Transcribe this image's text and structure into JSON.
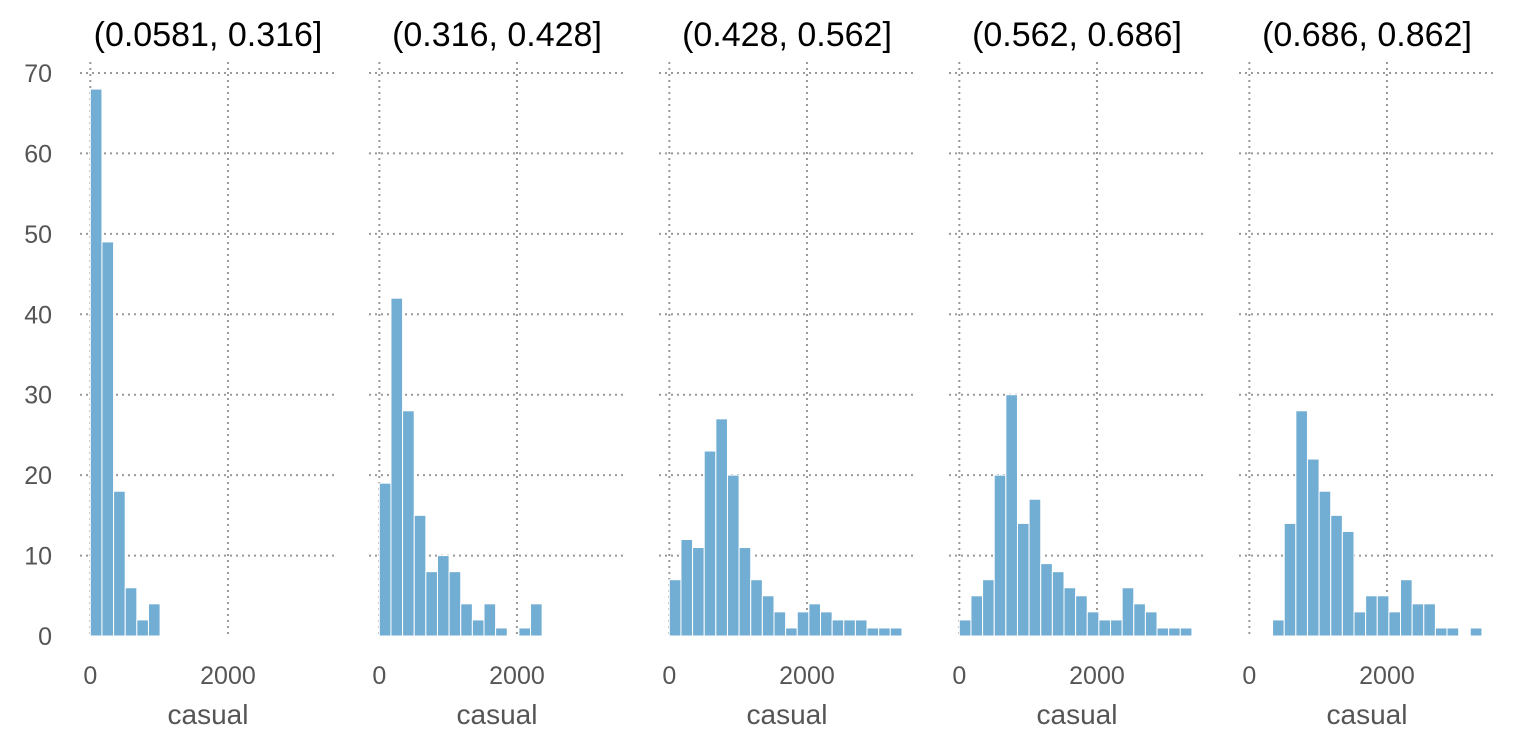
{
  "chart_data": {
    "type": "bar",
    "style": {
      "bar_color": "#72aed3",
      "grid": true,
      "grid_style": "dotted",
      "grid_color": "#999999"
    },
    "shared_y_axis": {
      "ticks": [
        0,
        10,
        20,
        30,
        40,
        50,
        60,
        70
      ],
      "ylim": [
        0,
        70
      ]
    },
    "panels": [
      {
        "title": "(0.0581, 0.316]",
        "xlabel": "casual",
        "xlim": [
          -150,
          3570
        ],
        "xticks": [
          0,
          2000
        ],
        "bars": [
          {
            "x0": 0,
            "x1": 169,
            "count": 68
          },
          {
            "x0": 169,
            "x1": 338,
            "count": 49
          },
          {
            "x0": 338,
            "x1": 507,
            "count": 18
          },
          {
            "x0": 507,
            "x1": 676,
            "count": 6
          },
          {
            "x0": 676,
            "x1": 845,
            "count": 2
          },
          {
            "x0": 845,
            "x1": 1014,
            "count": 4
          }
        ]
      },
      {
        "title": "(0.316, 0.428]",
        "xlabel": "casual",
        "xlim": [
          -150,
          3570
        ],
        "xticks": [
          0,
          2000
        ],
        "bars": [
          {
            "x0": 0,
            "x1": 169,
            "count": 19
          },
          {
            "x0": 169,
            "x1": 338,
            "count": 42
          },
          {
            "x0": 338,
            "x1": 507,
            "count": 28
          },
          {
            "x0": 507,
            "x1": 676,
            "count": 15
          },
          {
            "x0": 676,
            "x1": 845,
            "count": 8
          },
          {
            "x0": 845,
            "x1": 1014,
            "count": 10
          },
          {
            "x0": 1014,
            "x1": 1183,
            "count": 8
          },
          {
            "x0": 1183,
            "x1": 1352,
            "count": 4
          },
          {
            "x0": 1352,
            "x1": 1521,
            "count": 2
          },
          {
            "x0": 1521,
            "x1": 1690,
            "count": 4
          },
          {
            "x0": 1690,
            "x1": 1859,
            "count": 1
          },
          {
            "x0": 2028,
            "x1": 2197,
            "count": 1
          },
          {
            "x0": 2197,
            "x1": 2366,
            "count": 4
          }
        ]
      },
      {
        "title": "(0.428, 0.562]",
        "xlabel": "casual",
        "xlim": [
          -150,
          3570
        ],
        "xticks": [
          0,
          2000
        ],
        "bars": [
          {
            "x0": 0,
            "x1": 169,
            "count": 7
          },
          {
            "x0": 169,
            "x1": 338,
            "count": 12
          },
          {
            "x0": 338,
            "x1": 507,
            "count": 11
          },
          {
            "x0": 507,
            "x1": 676,
            "count": 23
          },
          {
            "x0": 676,
            "x1": 845,
            "count": 27
          },
          {
            "x0": 845,
            "x1": 1014,
            "count": 20
          },
          {
            "x0": 1014,
            "x1": 1183,
            "count": 11
          },
          {
            "x0": 1183,
            "x1": 1352,
            "count": 7
          },
          {
            "x0": 1352,
            "x1": 1521,
            "count": 5
          },
          {
            "x0": 1521,
            "x1": 1690,
            "count": 3
          },
          {
            "x0": 1690,
            "x1": 1859,
            "count": 1
          },
          {
            "x0": 1859,
            "x1": 2028,
            "count": 3
          },
          {
            "x0": 2028,
            "x1": 2197,
            "count": 4
          },
          {
            "x0": 2197,
            "x1": 2366,
            "count": 3
          },
          {
            "x0": 2366,
            "x1": 2535,
            "count": 2
          },
          {
            "x0": 2535,
            "x1": 2704,
            "count": 2
          },
          {
            "x0": 2704,
            "x1": 2873,
            "count": 2
          },
          {
            "x0": 2873,
            "x1": 3042,
            "count": 1
          },
          {
            "x0": 3042,
            "x1": 3211,
            "count": 1
          },
          {
            "x0": 3211,
            "x1": 3380,
            "count": 1
          }
        ]
      },
      {
        "title": "(0.562, 0.686]",
        "xlabel": "casual",
        "xlim": [
          -150,
          3570
        ],
        "xticks": [
          0,
          2000
        ],
        "bars": [
          {
            "x0": 0,
            "x1": 169,
            "count": 2
          },
          {
            "x0": 169,
            "x1": 338,
            "count": 5
          },
          {
            "x0": 338,
            "x1": 507,
            "count": 7
          },
          {
            "x0": 507,
            "x1": 676,
            "count": 20
          },
          {
            "x0": 676,
            "x1": 845,
            "count": 30
          },
          {
            "x0": 845,
            "x1": 1014,
            "count": 14
          },
          {
            "x0": 1014,
            "x1": 1183,
            "count": 17
          },
          {
            "x0": 1183,
            "x1": 1352,
            "count": 9
          },
          {
            "x0": 1352,
            "x1": 1521,
            "count": 8
          },
          {
            "x0": 1521,
            "x1": 1690,
            "count": 6
          },
          {
            "x0": 1690,
            "x1": 1859,
            "count": 5
          },
          {
            "x0": 1859,
            "x1": 2028,
            "count": 3
          },
          {
            "x0": 2028,
            "x1": 2197,
            "count": 2
          },
          {
            "x0": 2197,
            "x1": 2366,
            "count": 2
          },
          {
            "x0": 2366,
            "x1": 2535,
            "count": 6
          },
          {
            "x0": 2535,
            "x1": 2704,
            "count": 4
          },
          {
            "x0": 2704,
            "x1": 2873,
            "count": 3
          },
          {
            "x0": 2873,
            "x1": 3042,
            "count": 1
          },
          {
            "x0": 3042,
            "x1": 3211,
            "count": 1
          },
          {
            "x0": 3211,
            "x1": 3380,
            "count": 1
          }
        ]
      },
      {
        "title": "(0.686, 0.862]",
        "xlabel": "casual",
        "xlim": [
          -150,
          3570
        ],
        "xticks": [
          0,
          2000
        ],
        "bars": [
          {
            "x0": 338,
            "x1": 507,
            "count": 2
          },
          {
            "x0": 507,
            "x1": 676,
            "count": 14
          },
          {
            "x0": 676,
            "x1": 845,
            "count": 28
          },
          {
            "x0": 845,
            "x1": 1014,
            "count": 22
          },
          {
            "x0": 1014,
            "x1": 1183,
            "count": 18
          },
          {
            "x0": 1183,
            "x1": 1352,
            "count": 15
          },
          {
            "x0": 1352,
            "x1": 1521,
            "count": 13
          },
          {
            "x0": 1521,
            "x1": 1690,
            "count": 3
          },
          {
            "x0": 1690,
            "x1": 1859,
            "count": 5
          },
          {
            "x0": 1859,
            "x1": 2028,
            "count": 5
          },
          {
            "x0": 2028,
            "x1": 2197,
            "count": 3
          },
          {
            "x0": 2197,
            "x1": 2366,
            "count": 7
          },
          {
            "x0": 2366,
            "x1": 2535,
            "count": 4
          },
          {
            "x0": 2535,
            "x1": 2704,
            "count": 4
          },
          {
            "x0": 2704,
            "x1": 2873,
            "count": 1
          },
          {
            "x0": 2873,
            "x1": 3042,
            "count": 1
          },
          {
            "x0": 3211,
            "x1": 3380,
            "count": 1
          }
        ]
      }
    ]
  }
}
